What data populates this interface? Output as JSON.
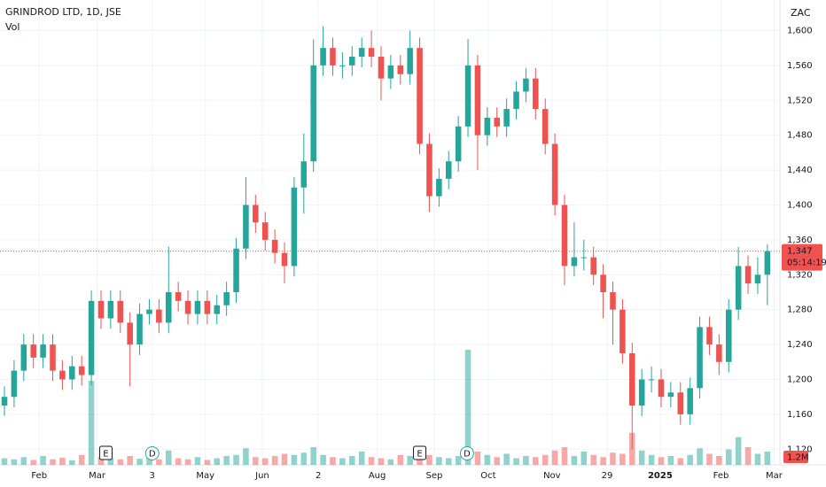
{
  "chart_data": {
    "type": "candlestick",
    "title": "GRINDROD LTD, 1D, JSE",
    "volume_title": "Vol",
    "currency": "ZAC",
    "up_color": "#26a69a",
    "down_color": "#ef5350",
    "grid": true,
    "ylim": [
      1102,
      1635
    ],
    "yticks": [
      {
        "value": 1120,
        "label": "1,120"
      },
      {
        "value": 1160,
        "label": "1,160"
      },
      {
        "value": 1200,
        "label": "1,200"
      },
      {
        "value": 1240,
        "label": "1,240"
      },
      {
        "value": 1280,
        "label": "1,280"
      },
      {
        "value": 1320,
        "label": "1,320"
      },
      {
        "value": 1360,
        "label": "1,360"
      },
      {
        "value": 1400,
        "label": "1,400"
      },
      {
        "value": 1440,
        "label": "1,440"
      },
      {
        "value": 1480,
        "label": "1,480"
      },
      {
        "value": 1520,
        "label": "1,520"
      },
      {
        "value": 1560,
        "label": "1,560"
      },
      {
        "value": 1600,
        "label": "1,600"
      }
    ],
    "xlim": [
      -0.46,
      80.3
    ],
    "xticks": [
      {
        "value": 3.6,
        "label": "Feb"
      },
      {
        "value": 9.6,
        "label": "Mar"
      },
      {
        "value": 15.3,
        "label": "3"
      },
      {
        "value": 20.8,
        "label": "May"
      },
      {
        "value": 26.7,
        "label": "Jun"
      },
      {
        "value": 32.5,
        "label": "2"
      },
      {
        "value": 38.6,
        "label": "Aug"
      },
      {
        "value": 44.5,
        "label": "Sep"
      },
      {
        "value": 50.1,
        "label": "Oct"
      },
      {
        "value": 56.7,
        "label": "Nov"
      },
      {
        "value": 62.4,
        "label": "29"
      },
      {
        "value": 67.9,
        "label": "2025"
      },
      {
        "value": 74.2,
        "label": "Feb"
      },
      {
        "value": 79.7,
        "label": "Mar"
      }
    ],
    "open": [
      1170,
      1180,
      1210,
      1240,
      1225,
      1240,
      1210,
      1200,
      1215,
      1205,
      1290,
      1270,
      1290,
      1265,
      1240,
      1275,
      1280,
      1265,
      1300,
      1290,
      1275,
      1290,
      1275,
      1285,
      1300,
      1350,
      1400,
      1380,
      1360,
      1345,
      1330,
      1420,
      1450,
      1560,
      1580,
      1560,
      1560,
      1570,
      1580,
      1570,
      1545,
      1560,
      1550,
      1580,
      1470,
      1410,
      1430,
      1450,
      1490,
      1560,
      1480,
      1500,
      1490,
      1510,
      1530,
      1545,
      1510,
      1470,
      1400,
      1330,
      1340,
      1340,
      1320,
      1300,
      1280,
      1230,
      1170,
      1200,
      1200,
      1180,
      1185,
      1160,
      1190,
      1260,
      1240,
      1220,
      1280,
      1330,
      1310,
      1320
    ],
    "high": [
      1192,
      1222,
      1252,
      1252,
      1252,
      1252,
      1222,
      1227,
      1227,
      1302,
      1302,
      1302,
      1302,
      1277,
      1287,
      1292,
      1292,
      1352,
      1312,
      1302,
      1302,
      1302,
      1297,
      1312,
      1362,
      1432,
      1412,
      1392,
      1372,
      1357,
      1432,
      1482,
      1590,
      1605,
      1592,
      1575,
      1582,
      1592,
      1600,
      1582,
      1572,
      1572,
      1600,
      1592,
      1482,
      1442,
      1462,
      1502,
      1590,
      1572,
      1512,
      1512,
      1522,
      1542,
      1557,
      1557,
      1522,
      1482,
      1412,
      1380,
      1360,
      1352,
      1332,
      1312,
      1292,
      1242,
      1212,
      1215,
      1212,
      1197,
      1197,
      1202,
      1272,
      1272,
      1252,
      1292,
      1352,
      1342,
      1340,
      1355
    ],
    "low": [
      1158,
      1168,
      1198,
      1213,
      1213,
      1198,
      1188,
      1188,
      1193,
      1193,
      1258,
      1258,
      1253,
      1192,
      1228,
      1263,
      1253,
      1253,
      1278,
      1263,
      1263,
      1263,
      1263,
      1273,
      1288,
      1338,
      1368,
      1348,
      1333,
      1310,
      1318,
      1390,
      1438,
      1548,
      1548,
      1545,
      1548,
      1558,
      1558,
      1520,
      1533,
      1538,
      1538,
      1458,
      1392,
      1398,
      1418,
      1438,
      1478,
      1440,
      1468,
      1478,
      1478,
      1498,
      1518,
      1498,
      1458,
      1388,
      1308,
      1318,
      1325,
      1308,
      1270,
      1240,
      1218,
      1120,
      1158,
      1185,
      1168,
      1168,
      1148,
      1148,
      1178,
      1228,
      1205,
      1208,
      1268,
      1298,
      1298,
      1285
    ],
    "close": [
      1180,
      1210,
      1240,
      1225,
      1240,
      1210,
      1200,
      1215,
      1205,
      1290,
      1270,
      1290,
      1265,
      1240,
      1275,
      1280,
      1265,
      1300,
      1290,
      1275,
      1290,
      1275,
      1285,
      1300,
      1350,
      1400,
      1380,
      1360,
      1345,
      1330,
      1420,
      1450,
      1560,
      1580,
      1560,
      1560,
      1570,
      1580,
      1570,
      1545,
      1560,
      1550,
      1580,
      1470,
      1410,
      1430,
      1450,
      1490,
      1560,
      1480,
      1500,
      1490,
      1510,
      1530,
      1545,
      1510,
      1470,
      1400,
      1330,
      1340,
      1340,
      1320,
      1300,
      1280,
      1230,
      1170,
      1200,
      1200,
      1180,
      1185,
      1160,
      1190,
      1260,
      1240,
      1220,
      1280,
      1330,
      1310,
      1320,
      1347
    ],
    "volume": [
      600000,
      500000,
      700000,
      450000,
      800000,
      500000,
      650000,
      400000,
      900000,
      7600000,
      700000,
      600000,
      500000,
      800000,
      550000,
      650000,
      500000,
      1300000,
      600000,
      500000,
      700000,
      450000,
      600000,
      800000,
      900000,
      1500000,
      700000,
      600000,
      800000,
      1000000,
      900000,
      1100000,
      1600000,
      900000,
      700000,
      600000,
      800000,
      1200000,
      700000,
      600000,
      500000,
      900000,
      800000,
      1500000,
      900000,
      700000,
      600000,
      800000,
      10400000,
      1200000,
      900000,
      700000,
      1000000,
      600000,
      800000,
      700000,
      900000,
      1300000,
      1600000,
      800000,
      1200000,
      900000,
      700000,
      1100000,
      1000000,
      2900000,
      1300000,
      900000,
      700000,
      800000,
      600000,
      900000,
      1500000,
      1000000,
      800000,
      1400000,
      2500000,
      1600000,
      1000000,
      1200000
    ],
    "volume_lim": [
      0,
      8000000
    ],
    "last_price": {
      "value": 1347,
      "label": "1,347"
    },
    "countdown": "05:14:19",
    "last_volume": {
      "value": 1200000,
      "label": "1.2M"
    },
    "events": [
      {
        "x": 10.5,
        "label": "E"
      },
      {
        "x": 15.3,
        "label": "D"
      },
      {
        "x": 43,
        "label": "E"
      },
      {
        "x": 47.9,
        "label": "D"
      }
    ]
  }
}
